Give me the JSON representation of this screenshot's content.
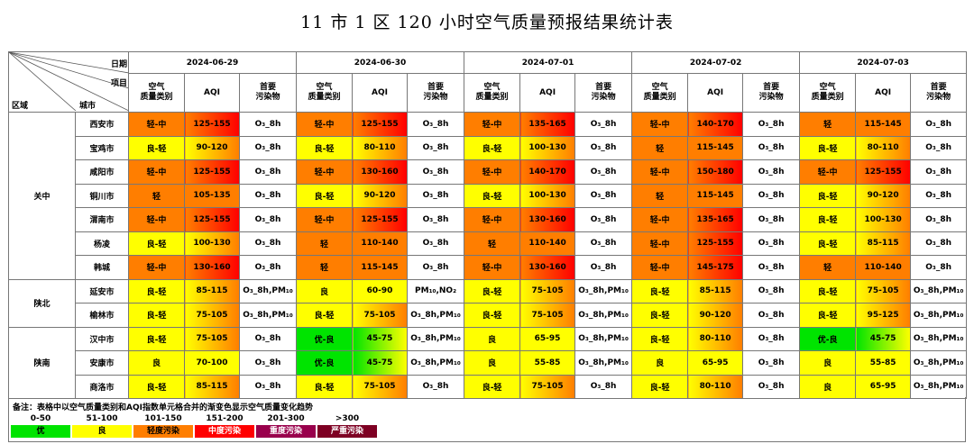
{
  "title": "11 市 1 区 120 小时空气质量预报结果统计表",
  "header": {
    "date_label": "日期",
    "item_label": "项目",
    "region_label": "区域",
    "city_label": "城市",
    "category_label": "空气\n质量类别",
    "aqi_label": "AQI",
    "pollutant_label": "首要\n污染物",
    "dates": [
      "2024-06-29",
      "2024-06-30",
      "2024-07-01",
      "2024-07-02",
      "2024-07-03"
    ]
  },
  "rows": [
    {
      "region": "关中",
      "city": "西安市",
      "days": [
        {
          "cat": "轻-中",
          "aqi": "125-155",
          "pol": "O₃_8h"
        },
        {
          "cat": "轻-中",
          "aqi": "125-155",
          "pol": "O₃_8h"
        },
        {
          "cat": "轻-中",
          "aqi": "135-165",
          "pol": "O₃_8h"
        },
        {
          "cat": "轻-中",
          "aqi": "140-170",
          "pol": "O₃_8h"
        },
        {
          "cat": "轻",
          "aqi": "115-145",
          "pol": "O₃_8h"
        }
      ]
    },
    {
      "region": "关中",
      "city": "宝鸡市",
      "days": [
        {
          "cat": "良-轻",
          "aqi": "90-120",
          "pol": "O₃_8h"
        },
        {
          "cat": "良-轻",
          "aqi": "80-110",
          "pol": "O₃_8h"
        },
        {
          "cat": "良-轻",
          "aqi": "100-130",
          "pol": "O₃_8h"
        },
        {
          "cat": "轻",
          "aqi": "115-145",
          "pol": "O₃_8h"
        },
        {
          "cat": "良-轻",
          "aqi": "80-110",
          "pol": "O₃_8h"
        }
      ]
    },
    {
      "region": "关中",
      "city": "咸阳市",
      "days": [
        {
          "cat": "轻-中",
          "aqi": "125-155",
          "pol": "O₃_8h"
        },
        {
          "cat": "轻-中",
          "aqi": "130-160",
          "pol": "O₃_8h"
        },
        {
          "cat": "轻-中",
          "aqi": "140-170",
          "pol": "O₃_8h"
        },
        {
          "cat": "轻-中",
          "aqi": "150-180",
          "pol": "O₃_8h"
        },
        {
          "cat": "轻-中",
          "aqi": "125-155",
          "pol": "O₃_8h"
        }
      ]
    },
    {
      "region": "关中",
      "city": "铜川市",
      "days": [
        {
          "cat": "轻",
          "aqi": "105-135",
          "pol": "O₃_8h"
        },
        {
          "cat": "良-轻",
          "aqi": "90-120",
          "pol": "O₃_8h"
        },
        {
          "cat": "良-轻",
          "aqi": "100-130",
          "pol": "O₃_8h"
        },
        {
          "cat": "轻",
          "aqi": "115-145",
          "pol": "O₃_8h"
        },
        {
          "cat": "良-轻",
          "aqi": "90-120",
          "pol": "O₃_8h"
        }
      ]
    },
    {
      "region": "关中",
      "city": "渭南市",
      "days": [
        {
          "cat": "轻-中",
          "aqi": "125-155",
          "pol": "O₃_8h"
        },
        {
          "cat": "轻-中",
          "aqi": "125-155",
          "pol": "O₃_8h"
        },
        {
          "cat": "轻-中",
          "aqi": "130-160",
          "pol": "O₃_8h"
        },
        {
          "cat": "轻-中",
          "aqi": "135-165",
          "pol": "O₃_8h"
        },
        {
          "cat": "良-轻",
          "aqi": "100-130",
          "pol": "O₃_8h"
        }
      ]
    },
    {
      "region": "关中",
      "city": "杨凌",
      "days": [
        {
          "cat": "良-轻",
          "aqi": "100-130",
          "pol": "O₃_8h"
        },
        {
          "cat": "轻",
          "aqi": "110-140",
          "pol": "O₃_8h"
        },
        {
          "cat": "轻",
          "aqi": "110-140",
          "pol": "O₃_8h"
        },
        {
          "cat": "轻-中",
          "aqi": "125-155",
          "pol": "O₃_8h"
        },
        {
          "cat": "良-轻",
          "aqi": "85-115",
          "pol": "O₃_8h"
        }
      ]
    },
    {
      "region": "关中",
      "city": "韩城",
      "days": [
        {
          "cat": "轻-中",
          "aqi": "130-160",
          "pol": "O₃_8h"
        },
        {
          "cat": "轻",
          "aqi": "115-145",
          "pol": "O₃_8h"
        },
        {
          "cat": "轻-中",
          "aqi": "130-160",
          "pol": "O₃_8h"
        },
        {
          "cat": "轻-中",
          "aqi": "145-175",
          "pol": "O₃_8h"
        },
        {
          "cat": "轻",
          "aqi": "110-140",
          "pol": "O₃_8h"
        }
      ]
    },
    {
      "region": "陕北",
      "city": "延安市",
      "days": [
        {
          "cat": "良-轻",
          "aqi": "85-115",
          "pol": "O₃_8h,PM₁₀"
        },
        {
          "cat": "良",
          "aqi": "60-90",
          "pol": "PM₁₀,NO₂"
        },
        {
          "cat": "良-轻",
          "aqi": "75-105",
          "pol": "O₃_8h,PM₁₀"
        },
        {
          "cat": "良-轻",
          "aqi": "85-115",
          "pol": "O₃_8h"
        },
        {
          "cat": "良-轻",
          "aqi": "75-105",
          "pol": "O₃_8h,PM₁₀"
        }
      ]
    },
    {
      "region": "陕北",
      "city": "榆林市",
      "days": [
        {
          "cat": "良-轻",
          "aqi": "75-105",
          "pol": "O₃_8h,PM₁₀"
        },
        {
          "cat": "良-轻",
          "aqi": "75-105",
          "pol": "O₃_8h,PM₁₀"
        },
        {
          "cat": "良-轻",
          "aqi": "75-105",
          "pol": "O₃_8h,PM₁₀"
        },
        {
          "cat": "良-轻",
          "aqi": "90-120",
          "pol": "O₃_8h"
        },
        {
          "cat": "良-轻",
          "aqi": "95-125",
          "pol": "O₃_8h,PM₁₀"
        }
      ]
    },
    {
      "region": "陕南",
      "city": "汉中市",
      "days": [
        {
          "cat": "良-轻",
          "aqi": "75-105",
          "pol": "O₃_8h"
        },
        {
          "cat": "优-良",
          "aqi": "45-75",
          "pol": "O₃_8h,PM₁₀"
        },
        {
          "cat": "良",
          "aqi": "65-95",
          "pol": "O₃_8h,PM₁₀"
        },
        {
          "cat": "良-轻",
          "aqi": "80-110",
          "pol": "O₃_8h"
        },
        {
          "cat": "优-良",
          "aqi": "45-75",
          "pol": "O₃_8h,PM₁₀"
        }
      ]
    },
    {
      "region": "陕南",
      "city": "安康市",
      "days": [
        {
          "cat": "良",
          "aqi": "70-100",
          "pol": "O₃_8h"
        },
        {
          "cat": "优-良",
          "aqi": "45-75",
          "pol": "O₃_8h,PM₁₀"
        },
        {
          "cat": "良",
          "aqi": "55-85",
          "pol": "O₃_8h,PM₁₀"
        },
        {
          "cat": "良",
          "aqi": "65-95",
          "pol": "O₃_8h"
        },
        {
          "cat": "良",
          "aqi": "55-85",
          "pol": "O₃_8h,PM₁₀"
        }
      ]
    },
    {
      "region": "陕南",
      "city": "商洛市",
      "days": [
        {
          "cat": "良-轻",
          "aqi": "85-115",
          "pol": "O₃_8h"
        },
        {
          "cat": "良-轻",
          "aqi": "75-105",
          "pol": "O₃_8h"
        },
        {
          "cat": "良-轻",
          "aqi": "75-105",
          "pol": "O₃_8h"
        },
        {
          "cat": "良-轻",
          "aqi": "80-110",
          "pol": "O₃_8h"
        },
        {
          "cat": "良",
          "aqi": "65-95",
          "pol": "O₃_8h,PM₁₀"
        }
      ]
    }
  ],
  "legend": {
    "note": "备注：表格中以空气质量类别和AQI指数单元格合并的渐变色显示空气质量变化趋势",
    "items": [
      {
        "range": "0-50",
        "label": "优",
        "color": "#00e400",
        "text_color": "#000000"
      },
      {
        "range": "51-100",
        "label": "良",
        "color": "#ffff00",
        "text_color": "#000000"
      },
      {
        "range": "101-150",
        "label": "轻度污染",
        "color": "#ff7e00",
        "text_color": "#000000"
      },
      {
        "range": "151-200",
        "label": "中度污染",
        "color": "#ff0000",
        "text_color": "#ffffff"
      },
      {
        "range": "201-300",
        "label": "重度污染",
        "color": "#99004c",
        "text_color": "#ffffff"
      },
      {
        "range": ">300",
        "label": "严重污染",
        "color": "#7e0023",
        "text_color": "#ffffff"
      }
    ]
  }
}
